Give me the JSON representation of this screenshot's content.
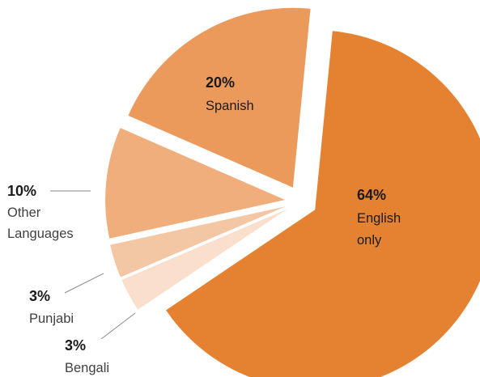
{
  "chart_data": {
    "type": "pie",
    "title": "",
    "exploded": true,
    "slices": [
      {
        "label": "English only",
        "label_lines": [
          "English",
          "only"
        ],
        "percent_text": "64%",
        "value": 64,
        "color": "#e58232",
        "label_placement": "inside"
      },
      {
        "label": "Bengali",
        "label_lines": [
          "Bengali"
        ],
        "percent_text": "3%",
        "value": 3,
        "color": "#f9dfcc",
        "label_placement": "outside"
      },
      {
        "label": "Punjabi",
        "label_lines": [
          "Punjabi"
        ],
        "percent_text": "3%",
        "value": 3,
        "color": "#f4c7a4",
        "label_placement": "outside"
      },
      {
        "label": "Other Languages",
        "label_lines": [
          "Other",
          "Languages"
        ],
        "percent_text": "10%",
        "value": 10,
        "color": "#efae7c",
        "label_placement": "outside"
      },
      {
        "label": "Spanish",
        "label_lines": [
          "Spanish"
        ],
        "percent_text": "20%",
        "value": 20,
        "color": "#eb9a5b",
        "label_placement": "inside"
      }
    ]
  }
}
